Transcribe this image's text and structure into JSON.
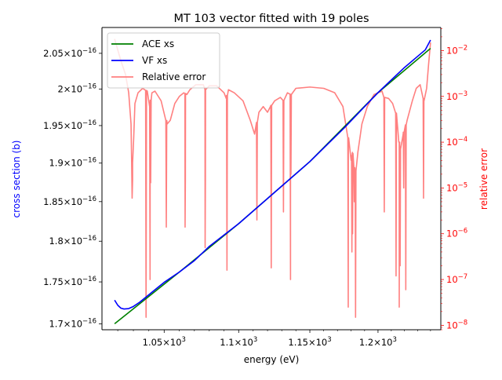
{
  "chart_data": {
    "type": "line",
    "title": "MT 103 vector fitted with 19 poles",
    "xlabel": "energy (eV)",
    "ylabel_left": "cross section (b)",
    "ylabel_right": "relative error",
    "x_scale": "log",
    "y_left_scale": "log",
    "y_right_scale": "log",
    "xlim": [
      1010.0,
      1248.0
    ],
    "ylim_left": [
      1.693e-16,
      2.087e-16
    ],
    "ylim_right": [
      8e-09,
      0.032
    ],
    "x_ticks": [
      {
        "value": 1050,
        "base": "1.05",
        "exp": "3"
      },
      {
        "value": 1100,
        "base": "1.1",
        "exp": "3"
      },
      {
        "value": 1150,
        "base": "1.15",
        "exp": "3"
      },
      {
        "value": 1200,
        "base": "1.2",
        "exp": "3"
      }
    ],
    "y_left_ticks": [
      {
        "value": 1.7e-16,
        "base": "1.7",
        "exp": "−16"
      },
      {
        "value": 1.75e-16,
        "base": "1.75",
        "exp": "−16"
      },
      {
        "value": 1.8e-16,
        "base": "1.8",
        "exp": "−16"
      },
      {
        "value": 1.85e-16,
        "base": "1.85",
        "exp": "−16"
      },
      {
        "value": 1.9e-16,
        "base": "1.9",
        "exp": "−16"
      },
      {
        "value": 1.95e-16,
        "base": "1.95",
        "exp": "−16"
      },
      {
        "value": 2e-16,
        "base": "2",
        "exp": "−16"
      },
      {
        "value": 2.05e-16,
        "base": "2.05",
        "exp": "−16"
      }
    ],
    "y_right_ticks": [
      {
        "value": 1e-08,
        "exp": "−8"
      },
      {
        "value": 1e-07,
        "exp": "−7"
      },
      {
        "value": 1e-06,
        "exp": "−6"
      },
      {
        "value": 1e-05,
        "exp": "−5"
      },
      {
        "value": 0.0001,
        "exp": "−4"
      },
      {
        "value": 0.001,
        "exp": "−3"
      },
      {
        "value": 0.01,
        "exp": "−2"
      }
    ],
    "legend": [
      "ACE xs",
      "VF xs",
      "Relative error"
    ],
    "legend_position": "upper-left",
    "series": [
      {
        "name": "ACE xs",
        "axis": "left",
        "color": "#008000",
        "x": [
          1018,
          1060,
          1100,
          1150,
          1200,
          1240
        ],
        "y": [
          1.7e-16,
          1.762e-16,
          1.822e-16,
          1.902e-16,
          1.995e-16,
          2.057e-16
        ]
      },
      {
        "name": "VF xs",
        "axis": "left",
        "color": "#0000ff",
        "x": [
          1018,
          1020,
          1022,
          1024,
          1027,
          1030,
          1034,
          1038,
          1042,
          1046,
          1050,
          1060,
          1070,
          1080,
          1100,
          1125,
          1150,
          1175,
          1200,
          1220,
          1236,
          1240
        ],
        "y": [
          1.728e-16,
          1.722e-16,
          1.7185e-16,
          1.7175e-16,
          1.718e-16,
          1.7205e-16,
          1.7255e-16,
          1.7315e-16,
          1.7375e-16,
          1.7435e-16,
          1.7495e-16,
          1.762e-16,
          1.776e-16,
          1.7935e-16,
          1.822e-16,
          1.862e-16,
          1.902e-16,
          1.947e-16,
          1.995e-16,
          2.03e-16,
          2.055e-16,
          2.069e-16
        ]
      },
      {
        "name": "Relative error",
        "axis": "right",
        "color": "#ff8080",
        "baseline": [
          [
            1018,
            0.018
          ],
          [
            1022,
            0.006
          ],
          [
            1025,
            0.003
          ],
          [
            1027,
            0.0012
          ],
          [
            1028.5,
            0.00025
          ],
          [
            1029.5,
            1.5e-05
          ],
          [
            1030.2,
            0.00012
          ],
          [
            1031,
            0.0007
          ],
          [
            1033,
            0.0012
          ],
          [
            1036,
            0.0015
          ],
          [
            1039,
            0.0013
          ],
          [
            1040.5,
            0.0006
          ],
          [
            1042,
            0.0012
          ],
          [
            1044,
            0.0013
          ],
          [
            1048,
            0.0008
          ],
          [
            1052,
            0.00025
          ],
          [
            1054,
            0.0003
          ],
          [
            1057,
            0.0007
          ],
          [
            1060,
            0.001
          ],
          [
            1063,
            0.0012
          ],
          [
            1065,
            0.0011
          ],
          [
            1067,
            0.0014
          ],
          [
            1071,
            0.0018
          ],
          [
            1076,
            0.0018
          ],
          [
            1077.5,
            0.0014
          ],
          [
            1080,
            0.0017
          ],
          [
            1085,
            0.0017
          ],
          [
            1090,
            0.0012
          ],
          [
            1091.5,
            0.0009
          ],
          [
            1093,
            0.0014
          ],
          [
            1097,
            0.0012
          ],
          [
            1103,
            0.0008
          ],
          [
            1108,
            0.0003
          ],
          [
            1111,
            0.00015
          ],
          [
            1114,
            0.00045
          ],
          [
            1117,
            0.0006
          ],
          [
            1120,
            0.00045
          ],
          [
            1122,
            0.0006
          ],
          [
            1125,
            0.0008
          ],
          [
            1129,
            0.00095
          ],
          [
            1131.5,
            0.0008
          ],
          [
            1134,
            0.0012
          ],
          [
            1136.5,
            0.0011
          ],
          [
            1140,
            0.0015
          ],
          [
            1150,
            0.0016
          ],
          [
            1160,
            0.0015
          ],
          [
            1168,
            0.0012
          ],
          [
            1174,
            0.0006
          ],
          [
            1178,
            0.00012
          ],
          [
            1180,
            4e-05
          ],
          [
            1181,
            6e-05
          ],
          [
            1183,
            2e-05
          ],
          [
            1185,
            6e-05
          ],
          [
            1188,
            0.00025
          ],
          [
            1192,
            0.0006
          ],
          [
            1197,
            0.0011
          ],
          [
            1203,
            0.0013
          ],
          [
            1205,
            0.0009
          ],
          [
            1208,
            0.0009
          ],
          [
            1211,
            0.0007
          ],
          [
            1214,
            0.0004
          ],
          [
            1216,
            0.0001
          ],
          [
            1217,
            6e-05
          ],
          [
            1219,
            0.00015
          ],
          [
            1222,
            0.0003
          ],
          [
            1226,
            0.0008
          ],
          [
            1229,
            0.0015
          ],
          [
            1232,
            0.0018
          ],
          [
            1235,
            0.0008
          ],
          [
            1237,
            0.0015
          ],
          [
            1238.5,
            0.005
          ],
          [
            1240,
            0.015
          ]
        ],
        "dips": [
          [
            1029.2,
            6e-06
          ],
          [
            1038.2,
            1.5e-08
          ],
          [
            1040.8,
            1e-07
          ],
          [
            1041.2,
            1.3e-05
          ],
          [
            1051.4,
            1.4e-06
          ],
          [
            1063.8,
            1.4e-06
          ],
          [
            1064.0,
            1.5e-05
          ],
          [
            1077.2,
            5e-07
          ],
          [
            1077.4,
            1.5e-05
          ],
          [
            1092.0,
            1.6e-07
          ],
          [
            1112.6,
            2e-06
          ],
          [
            1122.6,
            1.8e-07
          ],
          [
            1131.2,
            3e-06
          ],
          [
            1136.2,
            1e-07
          ],
          [
            1136.5,
            2e-05
          ],
          [
            1177.9,
            2.5e-08
          ],
          [
            1180.6,
            4e-07
          ],
          [
            1181.1,
            1e-06
          ],
          [
            1182.4,
            5e-06
          ],
          [
            1183.3,
            1.5e-08
          ],
          [
            1204.7,
            3e-06
          ],
          [
            1213.6,
            1.2e-07
          ],
          [
            1216.0,
            2.5e-08
          ],
          [
            1216.7,
            2e-07
          ],
          [
            1219.4,
            1e-05
          ],
          [
            1221.0,
            6e-08
          ],
          [
            1234.6,
            6e-06
          ]
        ]
      }
    ]
  }
}
